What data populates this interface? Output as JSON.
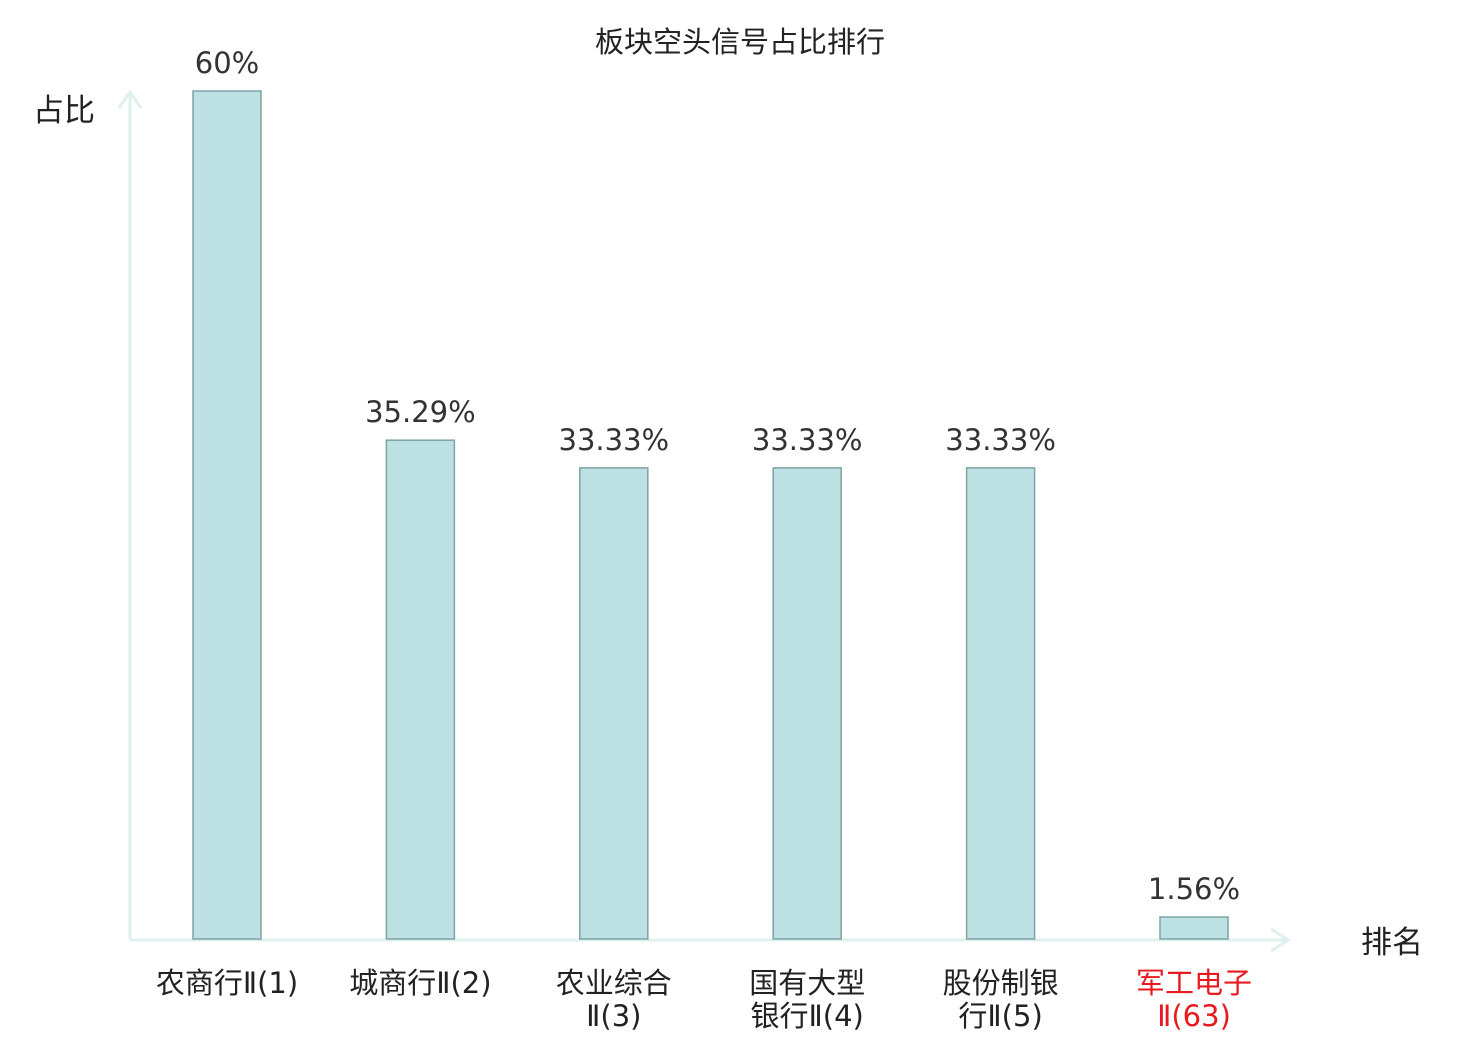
{
  "chart_data": {
    "type": "bar",
    "title": "板块空头信号占比排行",
    "ylabel": "占比",
    "xlabel": "排名",
    "ylim": [
      0,
      60
    ],
    "grid": false,
    "legend": "none",
    "categories": [
      [
        "农商行Ⅱ(1)"
      ],
      [
        "城商行Ⅱ(2)"
      ],
      [
        "农业综合",
        "Ⅱ(3)"
      ],
      [
        "国有大型",
        "银行Ⅱ(4)"
      ],
      [
        "股份制银",
        "行Ⅱ(5)"
      ],
      [
        "军工电子",
        "Ⅱ(63)"
      ]
    ],
    "values": [
      60,
      35.29,
      33.33,
      33.33,
      33.33,
      1.56
    ],
    "value_labels": [
      "60%",
      "35.29%",
      "33.33%",
      "33.33%",
      "33.33%",
      "1.56%"
    ],
    "highlight_index": 5,
    "colors": {
      "bar_fill": "#bde0e2",
      "bar_stroke": "#7fa3a6",
      "axis": "#dff1ee",
      "highlight_text": "#e8191f",
      "text": "#222222"
    }
  }
}
